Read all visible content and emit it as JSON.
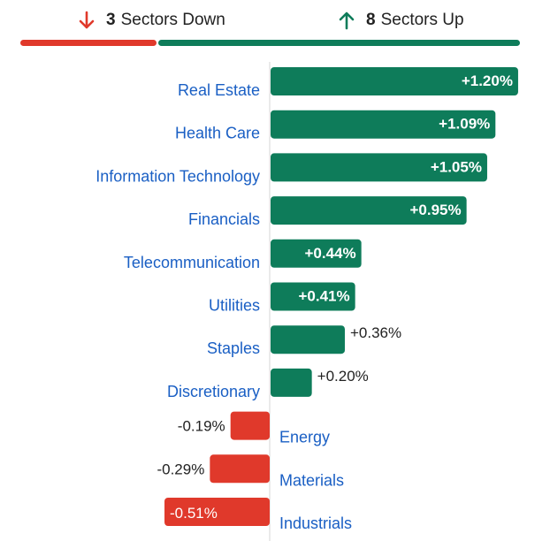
{
  "summary": {
    "down": {
      "count": "3",
      "label": "Sectors Down",
      "icon": "arrow-down-icon",
      "color": "#e0392b"
    },
    "up": {
      "count": "8",
      "label": "Sectors Up",
      "icon": "arrow-up-icon",
      "color": "#0e7c5a"
    }
  },
  "chart_data": {
    "type": "bar",
    "orientation": "horizontal",
    "categories": [
      "Real Estate",
      "Health Care",
      "Information Technology",
      "Financials",
      "Telecommunication",
      "Utilities",
      "Staples",
      "Discretionary",
      "Energy",
      "Materials",
      "Industrials"
    ],
    "values": [
      1.2,
      1.09,
      1.05,
      0.95,
      0.44,
      0.41,
      0.36,
      0.2,
      -0.19,
      -0.29,
      -0.51
    ],
    "labels": [
      "+1.20%",
      "+1.09%",
      "+1.05%",
      "+0.95%",
      "+0.44%",
      "+0.41%",
      "+0.36%",
      "+0.20%",
      "-0.19%",
      "-0.29%",
      "-0.51%"
    ],
    "positive_color": "#0e7c5a",
    "negative_color": "#e0392b",
    "category_label_color": "#1a5fc4",
    "grid": false,
    "legend": "none"
  }
}
